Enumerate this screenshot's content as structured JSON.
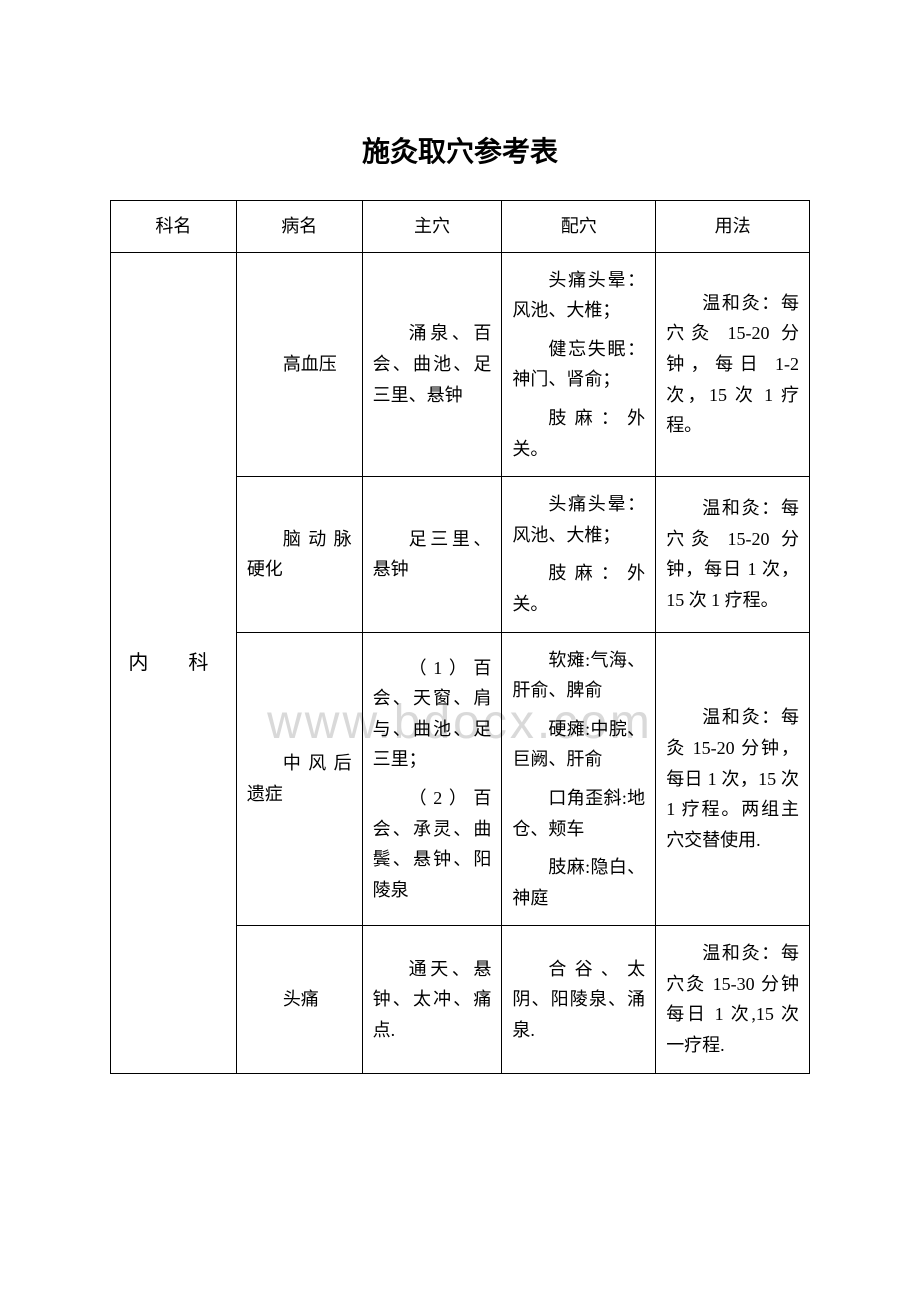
{
  "title": "施灸取穴参考表",
  "watermark": "www.bdocx.com",
  "columns": {
    "c1": "科名",
    "c2": "病名",
    "c3": "主穴",
    "c4": "配穴",
    "c5": "用法"
  },
  "dept": "内　科",
  "rows": [
    {
      "disease": "高血压",
      "main": "涌泉、百会、曲池、足三里、悬钟",
      "extra_parts": [
        "头痛头晕：风池、大椎；",
        "健忘失眠：神门、肾俞；",
        "肢麻：外关。"
      ],
      "usage": "温和灸：每穴灸 15-20 分钟，每日 1-2 次，15 次 1 疗程。"
    },
    {
      "disease": "脑动脉硬化",
      "main": "足三里、悬钟",
      "extra_parts": [
        "头痛头晕：风池、大椎；",
        "肢麻：外关。"
      ],
      "usage": "温和灸：每穴灸 15-20 分钟，每日 1 次，15 次 1 疗程。"
    },
    {
      "disease": "中风后遗症",
      "main_parts": [
        "（1）百会、天窗、肩与、曲池、足三里；",
        "（2）百会、承灵、曲鬓、悬钟、阳陵泉"
      ],
      "extra_parts": [
        "软瘫:气海、肝俞、脾俞",
        "硬瘫:中脘、巨阙、肝俞",
        "口角歪斜:地仓、颊车",
        "肢麻:隐白、神庭"
      ],
      "usage": "温和灸：每灸 15-20 分钟，每日 1 次，15 次 1 疗程。两组主穴交替使用."
    },
    {
      "disease": "头痛",
      "main": "通天、悬钟、太冲、痛点.",
      "extra": "合谷、太阴、阳陵泉、涌泉.",
      "usage": "温和灸：每穴灸 15-30 分钟每日 1 次,15 次一疗程."
    }
  ]
}
